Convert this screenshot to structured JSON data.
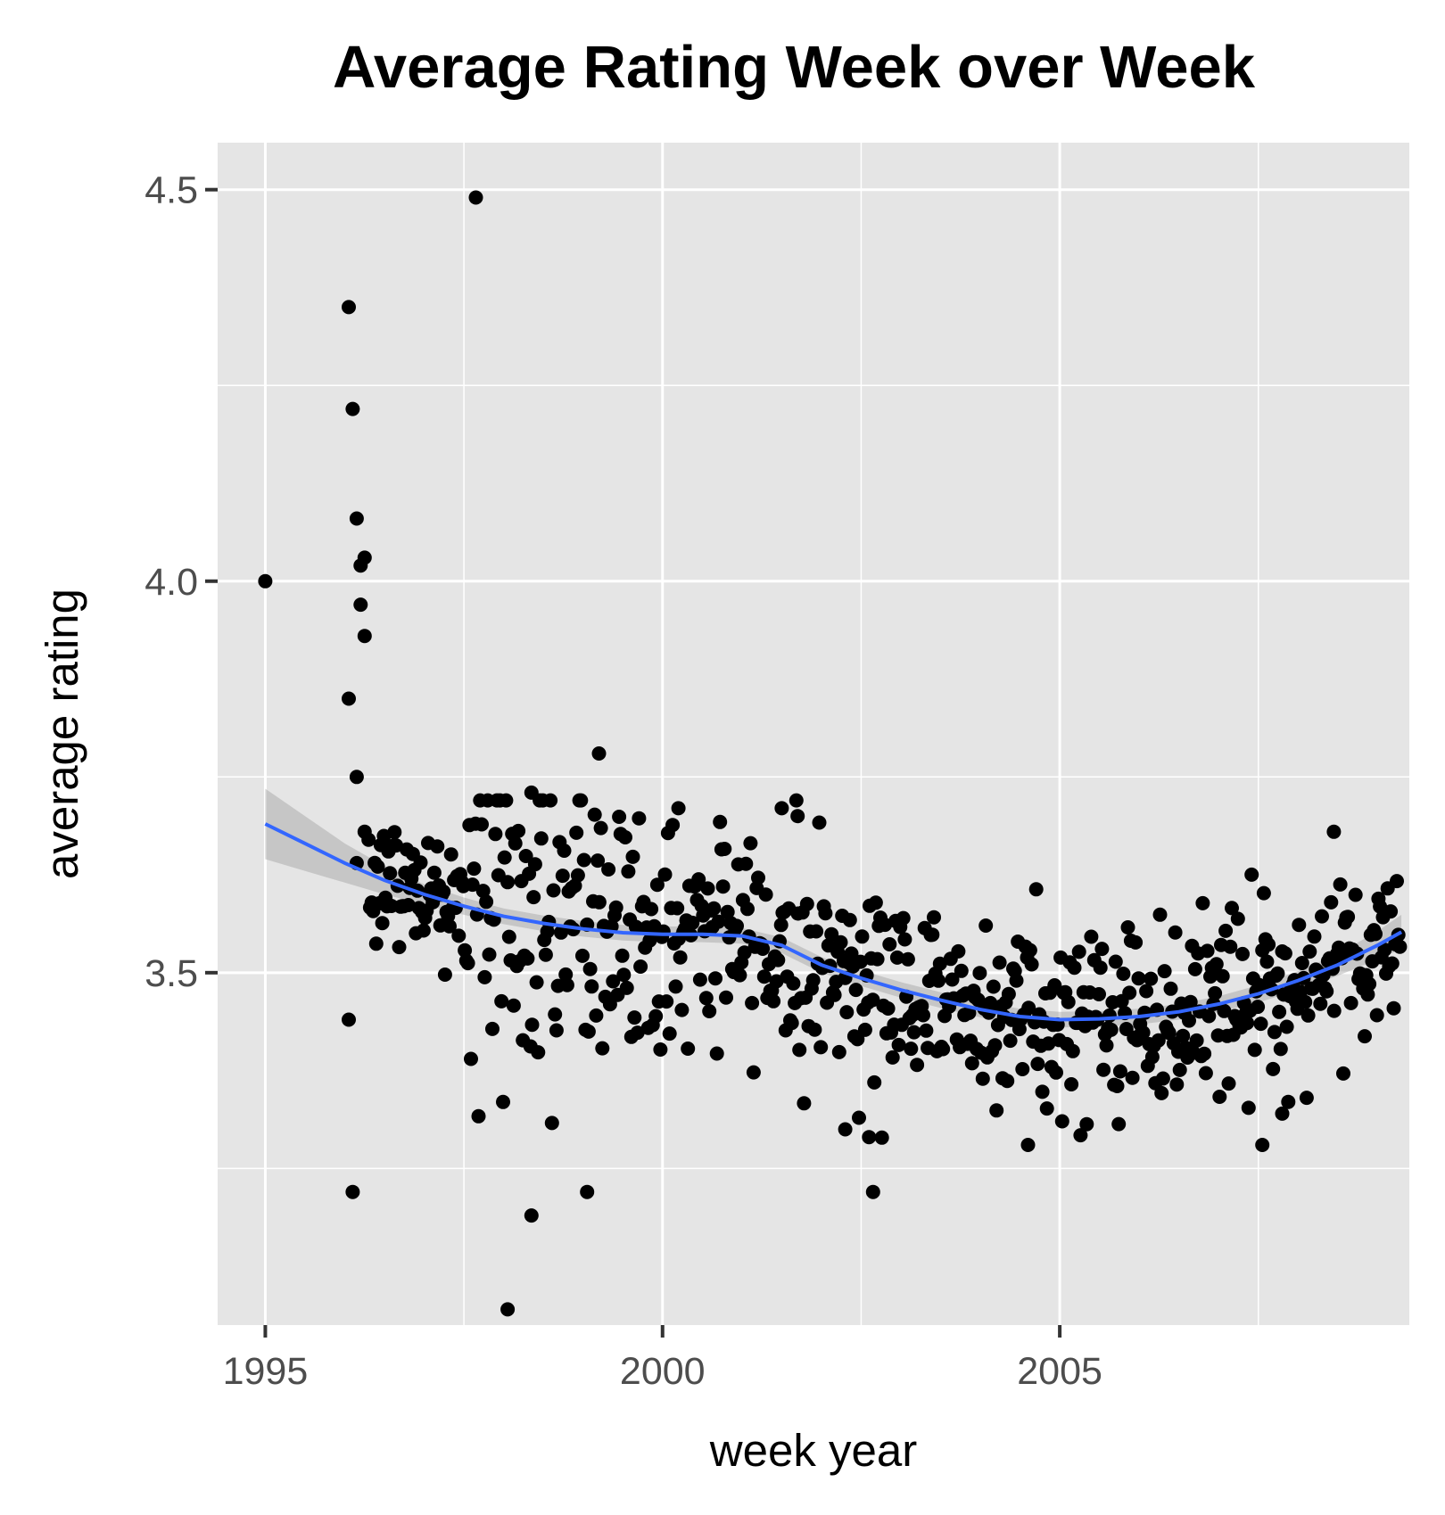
{
  "colors": {
    "panel_background": "#e5e5e5",
    "grid": "#ffffff",
    "points": "#000000",
    "smooth_line": "#3366ff",
    "confidence_band": "#999999",
    "tick_marks": "#333333"
  },
  "chart_data": {
    "type": "scatter",
    "title": "Average Rating Week over Week",
    "xlabel": "week year",
    "ylabel": "average rating",
    "xlim": [
      1994.4,
      2009.4
    ],
    "ylim": [
      3.05,
      4.56
    ],
    "x_ticks": [
      {
        "value": 1995,
        "label": "1995"
      },
      {
        "value": 2000,
        "label": "2000"
      },
      {
        "value": 2005,
        "label": "2005"
      }
    ],
    "y_ticks": [
      {
        "value": 3.5,
        "label": "3.5"
      },
      {
        "value": 4.0,
        "label": "4.0"
      },
      {
        "value": 4.5,
        "label": "4.5"
      }
    ],
    "x_minor_gridlines": [
      1997.5,
      2002.5,
      2007.5
    ],
    "y_minor_gridlines": [
      3.25,
      3.75,
      4.25
    ],
    "grid": true,
    "legend": "none",
    "outliers": [
      {
        "x": 1995.0,
        "y": 4.0
      },
      {
        "x": 1996.05,
        "y": 4.35
      },
      {
        "x": 1996.1,
        "y": 4.22
      },
      {
        "x": 1996.15,
        "y": 4.08
      },
      {
        "x": 1996.2,
        "y": 4.02
      },
      {
        "x": 1996.25,
        "y": 4.03
      },
      {
        "x": 1996.2,
        "y": 3.97
      },
      {
        "x": 1996.25,
        "y": 3.93
      },
      {
        "x": 1996.05,
        "y": 3.85
      },
      {
        "x": 1996.15,
        "y": 3.75
      },
      {
        "x": 1996.25,
        "y": 3.68
      },
      {
        "x": 1996.15,
        "y": 3.64
      },
      {
        "x": 1996.05,
        "y": 3.44
      },
      {
        "x": 1996.1,
        "y": 3.22
      },
      {
        "x": 1997.65,
        "y": 4.49
      },
      {
        "x": 1998.05,
        "y": 3.07
      },
      {
        "x": 1998.35,
        "y": 3.19
      },
      {
        "x": 1999.05,
        "y": 3.22
      },
      {
        "x": 2002.65,
        "y": 3.22
      },
      {
        "x": 2002.6,
        "y": 3.29
      },
      {
        "x": 2002.3,
        "y": 3.3
      },
      {
        "x": 2004.6,
        "y": 3.28
      },
      {
        "x": 2007.55,
        "y": 3.28
      },
      {
        "x": 2007.8,
        "y": 3.32
      },
      {
        "x": 1999.2,
        "y": 3.78
      },
      {
        "x": 1998.35,
        "y": 3.73
      },
      {
        "x": 2008.45,
        "y": 3.68
      },
      {
        "x": 2001.7,
        "y": 3.7
      },
      {
        "x": 2000.2,
        "y": 3.71
      },
      {
        "x": 2001.5,
        "y": 3.71
      }
    ],
    "bulk_series": {
      "points_per_year": 52,
      "x_start": 1996.3,
      "x_end": 2009.3,
      "trend": [
        {
          "x": 1995.0,
          "y": 3.69
        },
        {
          "x": 1996.0,
          "y": 3.64
        },
        {
          "x": 1997.0,
          "y": 3.6
        },
        {
          "x": 1998.0,
          "y": 3.575
        },
        {
          "x": 1999.0,
          "y": 3.56
        },
        {
          "x": 2000.0,
          "y": 3.55
        },
        {
          "x": 2001.0,
          "y": 3.548
        },
        {
          "x": 2002.0,
          "y": 3.51
        },
        {
          "x": 2003.0,
          "y": 3.48
        },
        {
          "x": 2004.0,
          "y": 3.455
        },
        {
          "x": 2005.0,
          "y": 3.44
        },
        {
          "x": 2006.0,
          "y": 3.445
        },
        {
          "x": 2007.0,
          "y": 3.46
        },
        {
          "x": 2008.0,
          "y": 3.49
        },
        {
          "x": 2009.3,
          "y": 3.552
        }
      ],
      "spread_by_period": [
        {
          "x_from": 1996.3,
          "x_to": 1997.5,
          "sd": 0.045
        },
        {
          "x_from": 1997.5,
          "x_to": 2000.0,
          "sd": 0.11
        },
        {
          "x_from": 2000.0,
          "x_to": 2003.0,
          "sd": 0.07
        },
        {
          "x_from": 2003.0,
          "x_to": 2009.3,
          "sd": 0.06
        }
      ]
    },
    "smooth": {
      "method": "loess",
      "x": [
        1995.0,
        1995.5,
        1996.0,
        1996.5,
        1997.0,
        1997.5,
        1998.0,
        1998.5,
        1999.0,
        1999.5,
        2000.0,
        2000.5,
        2001.0,
        2001.5,
        2002.0,
        2002.5,
        2003.0,
        2003.5,
        2004.0,
        2004.5,
        2005.0,
        2005.5,
        2006.0,
        2006.5,
        2007.0,
        2007.5,
        2008.0,
        2008.5,
        2009.0,
        2009.3
      ],
      "y": [
        3.69,
        3.665,
        3.64,
        3.618,
        3.6,
        3.585,
        3.572,
        3.563,
        3.556,
        3.551,
        3.549,
        3.549,
        3.547,
        3.535,
        3.51,
        3.493,
        3.478,
        3.465,
        3.453,
        3.444,
        3.44,
        3.441,
        3.444,
        3.45,
        3.46,
        3.473,
        3.49,
        3.51,
        3.535,
        3.552
      ],
      "se": [
        0.045,
        0.035,
        0.025,
        0.018,
        0.013,
        0.011,
        0.01,
        0.01,
        0.01,
        0.01,
        0.01,
        0.01,
        0.01,
        0.01,
        0.01,
        0.01,
        0.01,
        0.01,
        0.01,
        0.01,
        0.01,
        0.01,
        0.01,
        0.01,
        0.01,
        0.011,
        0.012,
        0.014,
        0.018,
        0.022
      ]
    }
  }
}
